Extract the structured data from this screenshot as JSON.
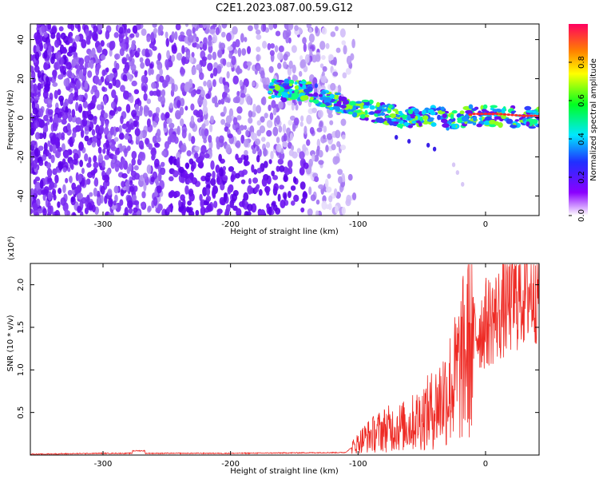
{
  "title": "C2E1.2023.087.00.59.G12",
  "colors": {
    "snr_line": "#ee2a24",
    "ridge_core": "#ff2a2a",
    "scatter_main": "#6a0ef0",
    "scatter_light": "#b48cf2"
  },
  "chart_data": [
    {
      "type": "heatmap",
      "title": "C2E1.2023.087.00.59.G12",
      "xlabel": "Height of straight line (km)",
      "ylabel": "Frequency (Hz)",
      "xlim": [
        -357,
        42
      ],
      "ylim": [
        -50,
        48
      ],
      "xticks": [
        -300,
        -200,
        -100,
        0
      ],
      "xtick_labels": [
        "-300",
        "-200",
        "-100",
        "0"
      ],
      "yticks": [
        -40,
        -20,
        0,
        20,
        40
      ],
      "ytick_labels": [
        "-40",
        "-20",
        "0",
        "20",
        "40"
      ],
      "colorbar": {
        "label": "Normalized spectral amplitude",
        "range": [
          0,
          1
        ],
        "ticks": [
          0.0,
          0.2,
          0.4,
          0.6,
          0.8
        ],
        "tick_labels": [
          "0.0",
          "0.2",
          "0.4",
          "0.6",
          "0.8"
        ],
        "colormap": [
          "#ffffff",
          "#8b00ff",
          "#2030ff",
          "#00e8ff",
          "#00ff20",
          "#ffff00",
          "#ff8000",
          "#ff0060"
        ]
      },
      "ridge": [
        {
          "x": -165,
          "y": 14
        },
        {
          "x": -140,
          "y": 14
        },
        {
          "x": -120,
          "y": 8
        },
        {
          "x": -100,
          "y": 5
        },
        {
          "x": -80,
          "y": 2
        },
        {
          "x": -60,
          "y": 0
        },
        {
          "x": -40,
          "y": 1
        },
        {
          "x": -25,
          "y": -2
        },
        {
          "x": -10,
          "y": 1
        },
        {
          "x": 10,
          "y": 1
        },
        {
          "x": 30,
          "y": 0
        },
        {
          "x": 42,
          "y": 0
        }
      ]
    },
    {
      "type": "line",
      "xlabel": "Height of straight line (km)",
      "ylabel": "SNR (10 * v/v)",
      "y_multiplier": "(x10⁴)",
      "xlim": [
        -357,
        42
      ],
      "ylim": [
        0,
        2.25
      ],
      "xticks": [
        -300,
        -200,
        -100,
        0
      ],
      "xtick_labels": [
        "-300",
        "-200",
        "-100",
        "0"
      ],
      "yticks": [
        0.5,
        1.0,
        1.5,
        2.0
      ],
      "ytick_labels": [
        "0.5",
        "1.0",
        "1.5",
        "2.0"
      ],
      "series": [
        {
          "trend": [
            {
              "x": -357,
              "y": 0.01
            },
            {
              "x": -300,
              "y": 0.02
            },
            {
              "x": -200,
              "y": 0.02
            },
            {
              "x": -110,
              "y": 0.03
            },
            {
              "x": -95,
              "y": 0.2
            },
            {
              "x": -80,
              "y": 0.3
            },
            {
              "x": -60,
              "y": 0.35
            },
            {
              "x": -40,
              "y": 0.55
            },
            {
              "x": -25,
              "y": 0.85
            },
            {
              "x": -10,
              "y": 1.4
            },
            {
              "x": 0,
              "y": 1.55
            },
            {
              "x": 10,
              "y": 1.65
            },
            {
              "x": 20,
              "y": 1.8
            },
            {
              "x": 30,
              "y": 1.9
            },
            {
              "x": 42,
              "y": 2.0
            }
          ]
        }
      ]
    }
  ]
}
